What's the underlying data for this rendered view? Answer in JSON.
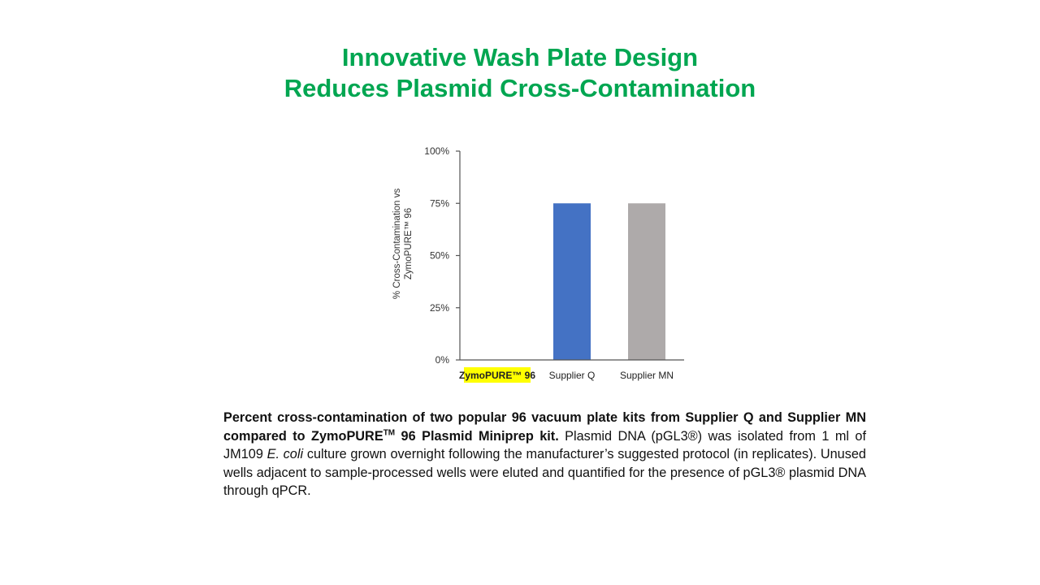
{
  "slide": {
    "title_line1": "Innovative Wash Plate Design",
    "title_line2": "Reduces Plasmid Cross-Contamination"
  },
  "colors": {
    "title": "#00a651",
    "bar_zymo": "#4472c4",
    "bar_q": "#4472c4",
    "bar_mn": "#aeaaaa",
    "highlight": "#ffff00",
    "axis": "#555555"
  },
  "chart_data": {
    "type": "bar",
    "categories": [
      "ZymoPURE™ 96",
      "Supplier Q",
      "Supplier MN"
    ],
    "values": [
      0,
      75,
      75
    ],
    "ylabel_line1": "% Cross-Contamination vs",
    "ylabel_line2": "ZymoPURE™ 96",
    "ylim": [
      0,
      100
    ],
    "yticks": [
      "0%",
      "25%",
      "50%",
      "75%",
      "100%"
    ],
    "ytick_values": [
      0,
      25,
      50,
      75,
      100
    ],
    "grid": false,
    "legend": "none",
    "highlighted_category": "ZymoPURE™ 96"
  },
  "caption": {
    "bold_part1": "Percent cross-contamination of two popular 96 vacuum plate kits from Supplier Q and Supplier MN compared to ZymoPURE",
    "bold_sup": "TM",
    "bold_part2": " 96 Plasmid Miniprep kit.",
    "text_part1": " Plasmid DNA (pGL3®) was isolated from 1 ml of JM109 ",
    "italic": "E. coli",
    "text_part2": " culture grown overnight following the manufacturer’s suggested protocol (in replicates). Unused wells adjacent to sample-processed wells were eluted and quantified for the presence of pGL3® plasmid DNA through qPCR."
  }
}
